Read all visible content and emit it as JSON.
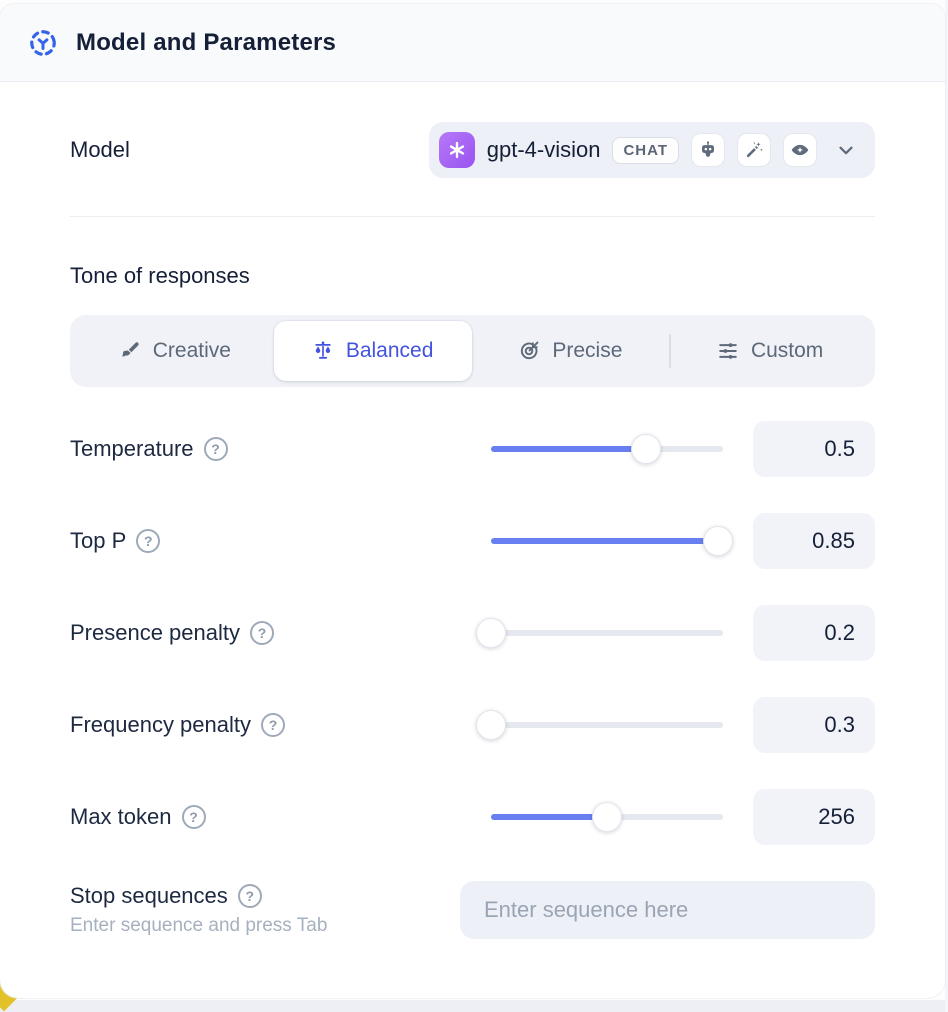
{
  "header": {
    "title": "Model and Parameters"
  },
  "model": {
    "label": "Model",
    "selected_model": "gpt-4-vision",
    "type_badge": "CHAT",
    "capabilities": [
      "robot-icon",
      "magic-wand-icon",
      "vision-eye-icon"
    ]
  },
  "tone": {
    "heading": "Tone of responses",
    "options": [
      {
        "label": "Creative",
        "icon": "paintbrush-icon",
        "selected": false
      },
      {
        "label": "Balanced",
        "icon": "scales-icon",
        "selected": true
      },
      {
        "label": "Precise",
        "icon": "target-icon",
        "selected": false
      },
      {
        "label": "Custom",
        "icon": "sliders-icon",
        "selected": false
      }
    ]
  },
  "params": [
    {
      "label": "Temperature",
      "value": "0.5",
      "fill_pct": 67
    },
    {
      "label": "Top P",
      "value": "0.85",
      "fill_pct": 98
    },
    {
      "label": "Presence penalty",
      "value": "0.2",
      "fill_pct": 0
    },
    {
      "label": "Frequency penalty",
      "value": "0.3",
      "fill_pct": 0
    },
    {
      "label": "Max token",
      "value": "256",
      "fill_pct": 50
    }
  ],
  "stop_sequences": {
    "label": "Stop sequences",
    "hint": "Enter sequence and press Tab",
    "placeholder": "Enter sequence here"
  },
  "icons": {
    "help_glyph": "?"
  },
  "colors": {
    "accent_blue": "#687ff2",
    "selected_tab_text": "#4353de",
    "header_icon_blue": "#3563e9",
    "logo_purple": "#9a53f0",
    "dark_text": "#151f38",
    "muted_text": "#5d6879",
    "field_bg": "#edf0f6",
    "yellow_corner": "#e3c229"
  }
}
